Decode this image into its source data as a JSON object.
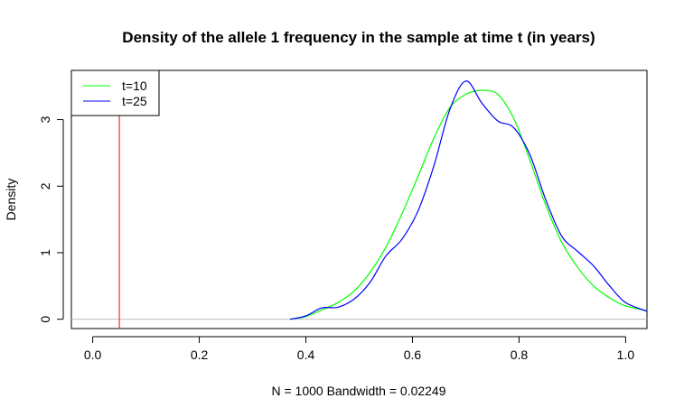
{
  "chart_data": {
    "type": "line",
    "title": "Density of the allele 1 frequency in the sample at time t (in years)",
    "xlabel": "N = 1000   Bandwidth = 0.02249",
    "ylabel": "Density",
    "xlim": [
      -0.04,
      1.04
    ],
    "ylim": [
      -0.14,
      3.74
    ],
    "x_ticks": [
      0.0,
      0.2,
      0.4,
      0.6,
      0.8,
      1.0
    ],
    "x_tick_labels": [
      "0.0",
      "0.2",
      "0.4",
      "0.6",
      "0.8",
      "1.0"
    ],
    "y_ticks": [
      0,
      1,
      2,
      3
    ],
    "y_tick_labels": [
      "0",
      "1",
      "2",
      "3"
    ],
    "grid": false,
    "legend_position": "top-left",
    "baseline": {
      "y": 0,
      "color": "#bebebe"
    },
    "vline": {
      "x": 0.05,
      "color": "#ff0000"
    },
    "series": [
      {
        "name": "t=10",
        "color": "#00ff00",
        "x": [
          0.37,
          0.4,
          0.43,
          0.46,
          0.49,
          0.52,
          0.55,
          0.58,
          0.61,
          0.64,
          0.67,
          0.7,
          0.73,
          0.76,
          0.79,
          0.82,
          0.85,
          0.88,
          0.91,
          0.94,
          0.97,
          1.0,
          1.04
        ],
        "y": [
          0.0,
          0.04,
          0.14,
          0.25,
          0.42,
          0.7,
          1.08,
          1.58,
          2.14,
          2.72,
          3.18,
          3.38,
          3.44,
          3.38,
          3.02,
          2.4,
          1.72,
          1.16,
          0.78,
          0.5,
          0.32,
          0.2,
          0.13
        ]
      },
      {
        "name": "t=25",
        "color": "#0000ff",
        "x": [
          0.37,
          0.4,
          0.43,
          0.46,
          0.49,
          0.52,
          0.55,
          0.58,
          0.61,
          0.64,
          0.67,
          0.7,
          0.73,
          0.76,
          0.79,
          0.82,
          0.85,
          0.88,
          0.91,
          0.94,
          0.97,
          1.0,
          1.04
        ],
        "y": [
          0.0,
          0.05,
          0.17,
          0.18,
          0.3,
          0.55,
          0.95,
          1.2,
          1.62,
          2.3,
          3.15,
          3.58,
          3.25,
          2.98,
          2.88,
          2.48,
          1.8,
          1.25,
          1.02,
          0.8,
          0.5,
          0.25,
          0.12
        ]
      }
    ]
  }
}
